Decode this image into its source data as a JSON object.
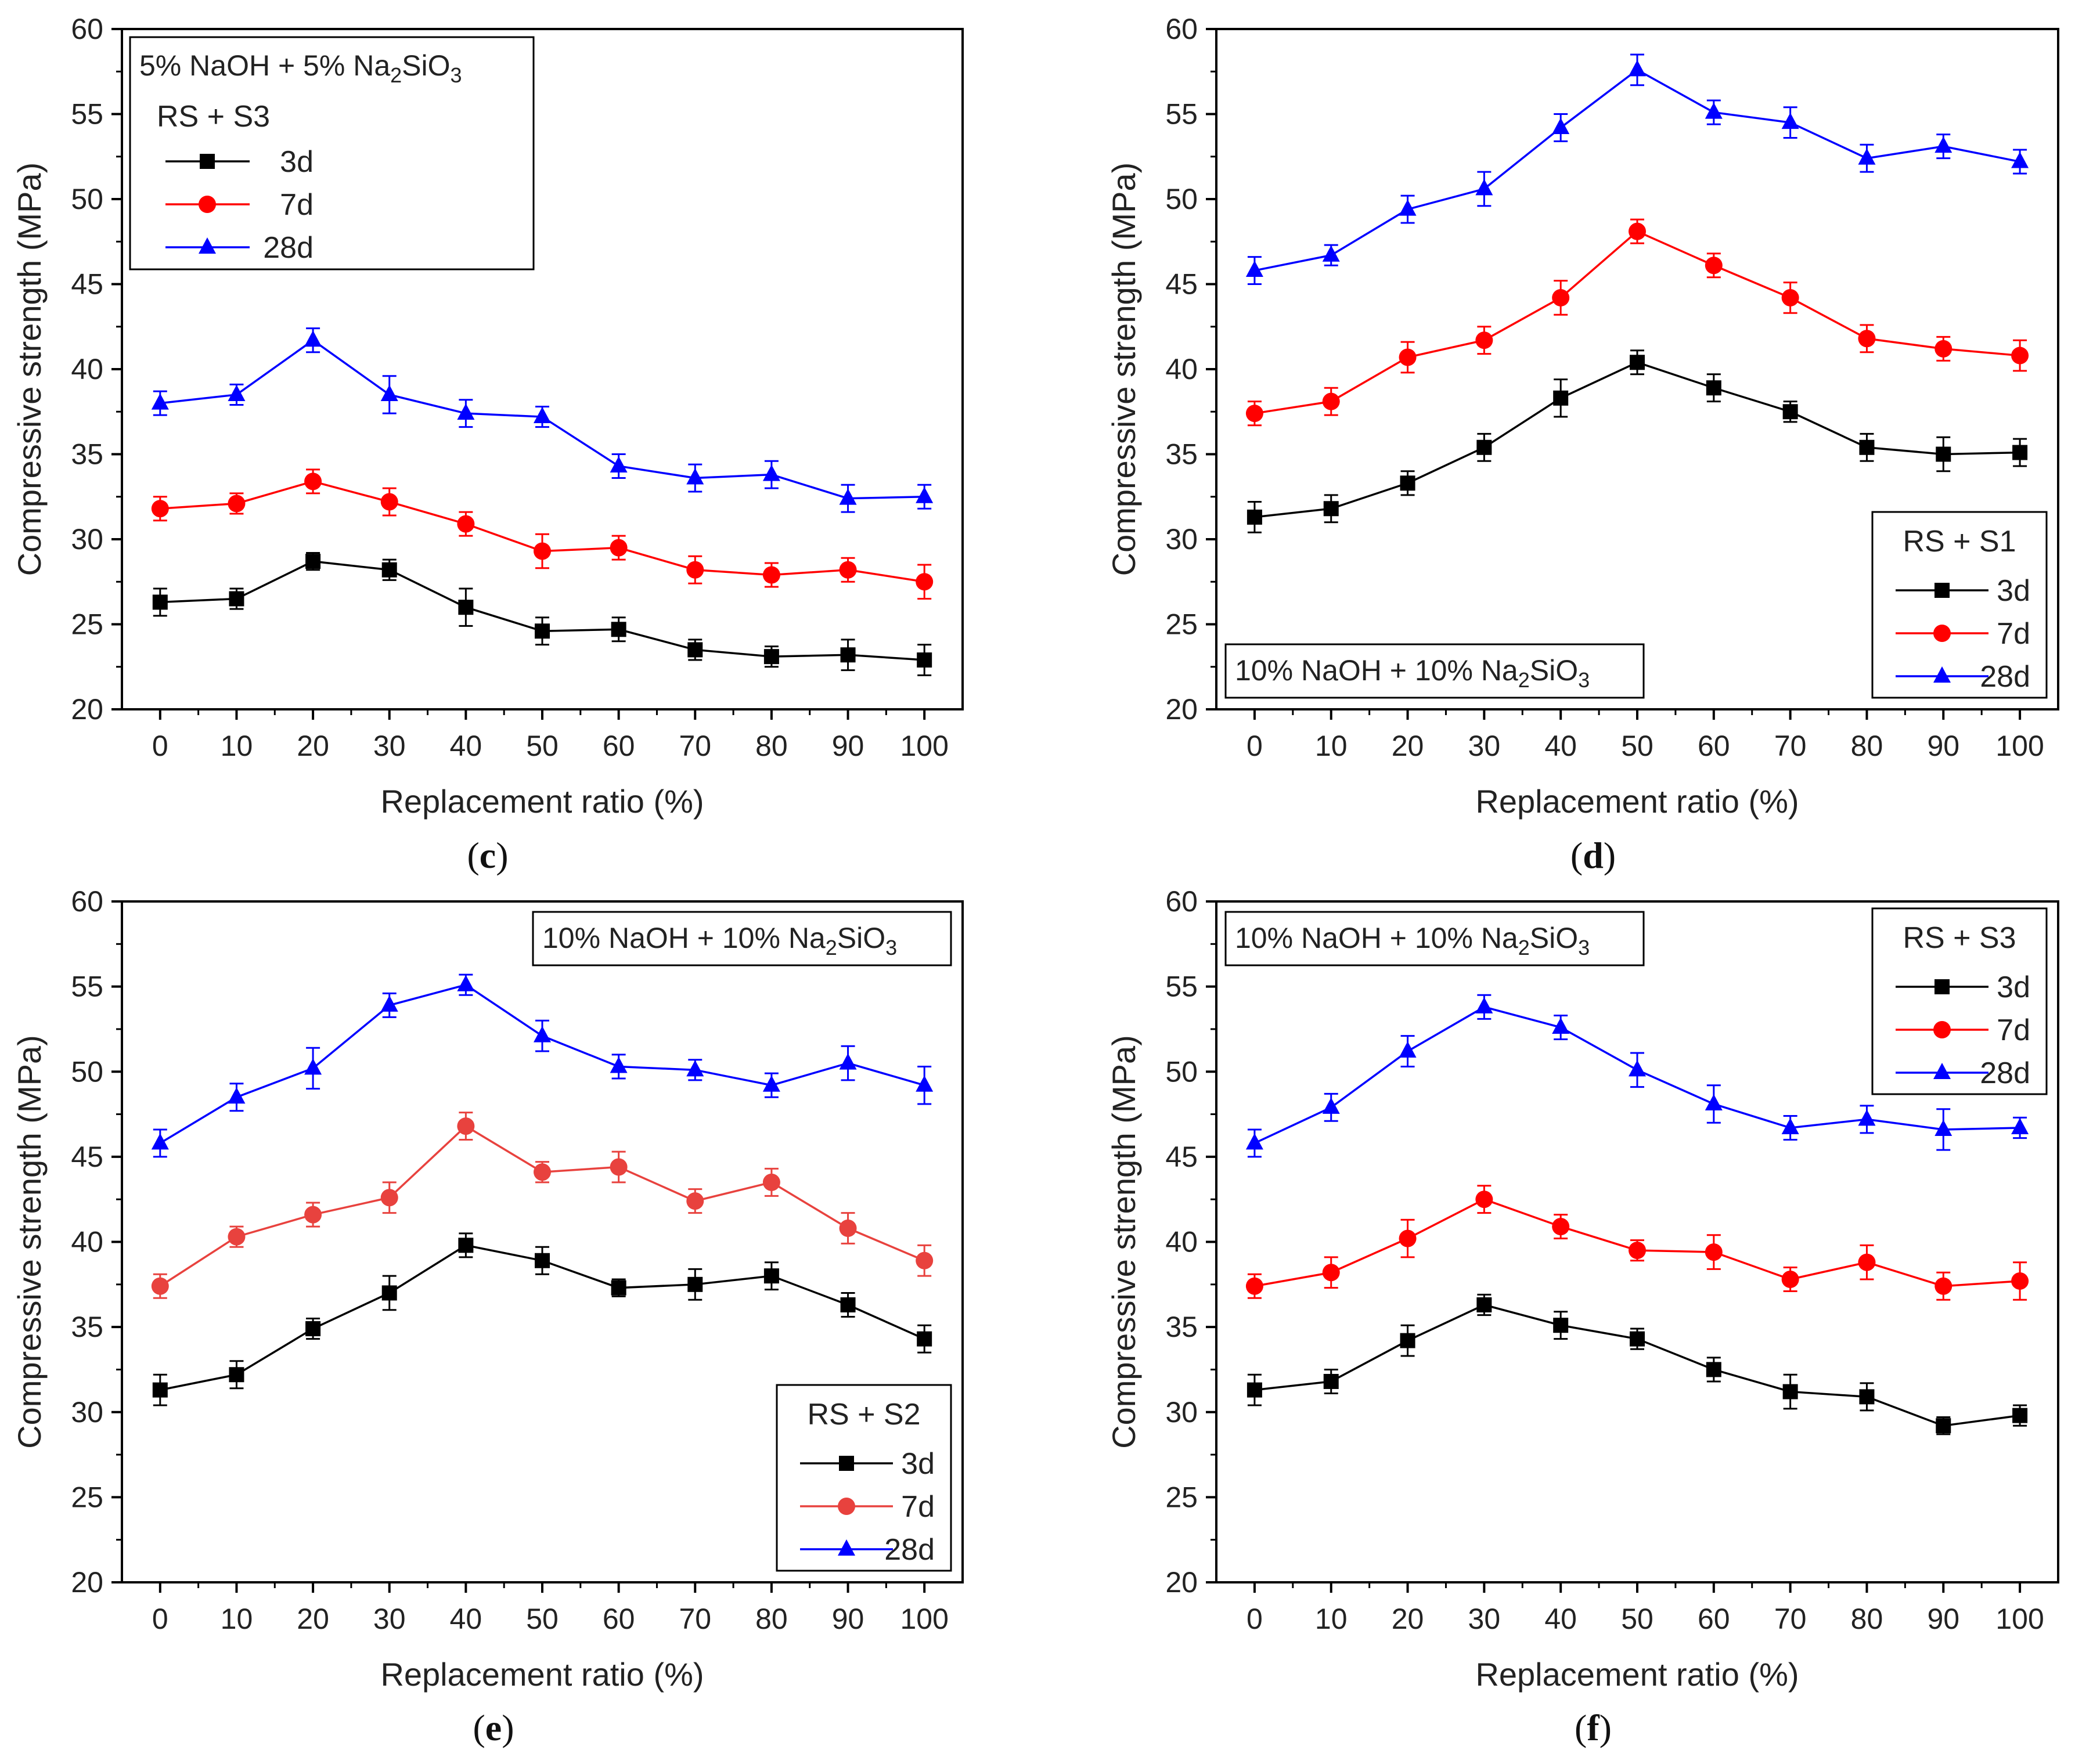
{
  "chart_data": [
    {
      "panel": "c",
      "caption": {
        "open": "(",
        "letter": "c",
        "close": ")"
      },
      "type": "line",
      "xlabel": "Replacement ratio (%)",
      "ylabel": "Compressive strength (MPa)",
      "xlim": [
        -5,
        105
      ],
      "ylim": [
        20,
        60
      ],
      "xticks": [
        "0",
        "10",
        "20",
        "30",
        "40",
        "50",
        "60",
        "70",
        "80",
        "90",
        "100"
      ],
      "yticks": [
        "20",
        "25",
        "30",
        "35",
        "40",
        "45",
        "50",
        "55",
        "60"
      ],
      "x": [
        0,
        10,
        20,
        30,
        40,
        50,
        60,
        70,
        80,
        90,
        100
      ],
      "condition": {
        "main": "5% NaOH + 5% Na",
        "sub": "2",
        "tail": "SiO",
        "sub2": "3"
      },
      "condition_position": "top-left",
      "legend": {
        "title": "RS + S3",
        "position": "top-left"
      },
      "series": [
        {
          "name": "3d",
          "marker": "square",
          "color": "#000000",
          "values": [
            26.3,
            26.5,
            28.7,
            28.2,
            26.0,
            24.6,
            24.7,
            23.5,
            23.1,
            23.2,
            22.9
          ],
          "errors": [
            0.8,
            0.6,
            0.5,
            0.6,
            1.1,
            0.8,
            0.7,
            0.6,
            0.6,
            0.9,
            0.9
          ]
        },
        {
          "name": "7d",
          "marker": "circle",
          "color": "#ff0000",
          "values": [
            31.8,
            32.1,
            33.4,
            32.2,
            30.9,
            29.3,
            29.5,
            28.2,
            27.9,
            28.2,
            27.5
          ],
          "errors": [
            0.7,
            0.6,
            0.7,
            0.8,
            0.7,
            1.0,
            0.7,
            0.8,
            0.7,
            0.7,
            1.0
          ]
        },
        {
          "name": "28d",
          "marker": "triangle",
          "color": "#0000ff",
          "values": [
            38.0,
            38.5,
            41.7,
            38.5,
            37.4,
            37.2,
            34.3,
            33.6,
            33.8,
            32.4,
            32.5
          ],
          "errors": [
            0.7,
            0.6,
            0.7,
            1.1,
            0.8,
            0.6,
            0.7,
            0.8,
            0.8,
            0.8,
            0.7
          ]
        }
      ]
    },
    {
      "panel": "d",
      "caption": {
        "open": "(",
        "letter": "d",
        "close": ")"
      },
      "type": "line",
      "xlabel": "Replacement ratio (%)",
      "ylabel": "Compressive strength (MPa)",
      "xlim": [
        -5,
        105
      ],
      "ylim": [
        20,
        60
      ],
      "xticks": [
        "0",
        "10",
        "20",
        "30",
        "40",
        "50",
        "60",
        "70",
        "80",
        "90",
        "100"
      ],
      "yticks": [
        "20",
        "25",
        "30",
        "35",
        "40",
        "45",
        "50",
        "55",
        "60"
      ],
      "x": [
        0,
        10,
        20,
        30,
        40,
        50,
        60,
        70,
        80,
        90,
        100
      ],
      "condition": {
        "main": "10% NaOH + 10% Na",
        "sub": "2",
        "tail": "SiO",
        "sub2": "3"
      },
      "condition_position": "bottom-left",
      "legend": {
        "title": "RS + S1",
        "position": "bottom-right"
      },
      "series": [
        {
          "name": "3d",
          "marker": "square",
          "color": "#000000",
          "values": [
            31.3,
            31.8,
            33.3,
            35.4,
            38.3,
            40.4,
            38.9,
            37.5,
            35.4,
            35.0,
            35.1
          ],
          "errors": [
            0.9,
            0.8,
            0.7,
            0.8,
            1.1,
            0.7,
            0.8,
            0.6,
            0.8,
            1.0,
            0.8
          ]
        },
        {
          "name": "7d",
          "marker": "circle",
          "color": "#ff0000",
          "values": [
            37.4,
            38.1,
            40.7,
            41.7,
            44.2,
            48.1,
            46.1,
            44.2,
            41.8,
            41.2,
            40.8
          ],
          "errors": [
            0.7,
            0.8,
            0.9,
            0.8,
            1.0,
            0.7,
            0.7,
            0.9,
            0.8,
            0.7,
            0.9
          ]
        },
        {
          "name": "28d",
          "marker": "triangle",
          "color": "#0000ff",
          "values": [
            45.8,
            46.7,
            49.4,
            50.6,
            54.2,
            57.6,
            55.1,
            54.5,
            52.4,
            53.1,
            52.2
          ],
          "errors": [
            0.8,
            0.6,
            0.8,
            1.0,
            0.8,
            0.9,
            0.7,
            0.9,
            0.8,
            0.7,
            0.7
          ]
        }
      ]
    },
    {
      "panel": "e",
      "caption": {
        "open": "(",
        "letter": "e",
        "close": ")"
      },
      "type": "line",
      "xlabel": "Replacement ratio (%)",
      "ylabel": "Compressive strength (MPa)",
      "xlim": [
        -5,
        105
      ],
      "ylim": [
        20,
        60
      ],
      "xticks": [
        "0",
        "10",
        "20",
        "30",
        "40",
        "50",
        "60",
        "70",
        "80",
        "90",
        "100"
      ],
      "yticks": [
        "20",
        "25",
        "30",
        "35",
        "40",
        "45",
        "50",
        "55",
        "60"
      ],
      "x": [
        0,
        10,
        20,
        30,
        40,
        50,
        60,
        70,
        80,
        90,
        100
      ],
      "condition": {
        "main": "10% NaOH + 10% Na",
        "sub": "2",
        "tail": "SiO",
        "sub2": "3"
      },
      "condition_position": "top-right",
      "legend": {
        "title": "RS + S2",
        "position": "bottom-right"
      },
      "series": [
        {
          "name": "3d",
          "marker": "square",
          "color": "#000000",
          "values": [
            31.3,
            32.2,
            34.9,
            37.0,
            39.8,
            38.9,
            37.3,
            37.5,
            38.0,
            36.3,
            34.3
          ],
          "errors": [
            0.9,
            0.8,
            0.6,
            1.0,
            0.7,
            0.8,
            0.5,
            0.9,
            0.8,
            0.7,
            0.8
          ]
        },
        {
          "name": "7d",
          "marker": "circle",
          "color": "#e8423e",
          "values": [
            37.4,
            40.3,
            41.6,
            42.6,
            46.8,
            44.1,
            44.4,
            42.4,
            43.5,
            40.8,
            38.9
          ],
          "errors": [
            0.7,
            0.6,
            0.7,
            0.9,
            0.8,
            0.6,
            0.9,
            0.7,
            0.8,
            0.9,
            0.9
          ]
        },
        {
          "name": "28d",
          "marker": "triangle",
          "color": "#0000ff",
          "values": [
            45.8,
            48.5,
            50.2,
            53.9,
            55.1,
            52.1,
            50.3,
            50.1,
            49.2,
            50.5,
            49.2
          ],
          "errors": [
            0.8,
            0.8,
            1.2,
            0.7,
            0.6,
            0.9,
            0.7,
            0.6,
            0.7,
            1.0,
            1.1
          ]
        }
      ]
    },
    {
      "panel": "f",
      "caption": {
        "open": "(",
        "letter": "f",
        "close": ")"
      },
      "type": "line",
      "xlabel": "Replacement ratio (%)",
      "ylabel": "Compressive strength (MPa)",
      "xlim": [
        -5,
        105
      ],
      "ylim": [
        20,
        60
      ],
      "xticks": [
        "0",
        "10",
        "20",
        "30",
        "40",
        "50",
        "60",
        "70",
        "80",
        "90",
        "100"
      ],
      "yticks": [
        "20",
        "25",
        "30",
        "35",
        "40",
        "45",
        "50",
        "55",
        "60"
      ],
      "x": [
        0,
        10,
        20,
        30,
        40,
        50,
        60,
        70,
        80,
        90,
        100
      ],
      "condition": {
        "main": "10% NaOH + 10% Na",
        "sub": "2",
        "tail": "SiO",
        "sub2": "3"
      },
      "condition_position": "top-left",
      "legend": {
        "title": "RS + S3",
        "position": "top-right"
      },
      "series": [
        {
          "name": "3d",
          "marker": "square",
          "color": "#000000",
          "values": [
            31.3,
            31.8,
            34.2,
            36.3,
            35.1,
            34.3,
            32.5,
            31.2,
            30.9,
            29.2,
            29.8
          ],
          "errors": [
            0.9,
            0.7,
            0.9,
            0.6,
            0.8,
            0.6,
            0.7,
            1.0,
            0.8,
            0.5,
            0.6
          ]
        },
        {
          "name": "7d",
          "marker": "circle",
          "color": "#ff0000",
          "values": [
            37.4,
            38.2,
            40.2,
            42.5,
            40.9,
            39.5,
            39.4,
            37.8,
            38.8,
            37.4,
            37.7
          ],
          "errors": [
            0.7,
            0.9,
            1.1,
            0.8,
            0.7,
            0.6,
            1.0,
            0.7,
            1.0,
            0.8,
            1.1
          ]
        },
        {
          "name": "28d",
          "marker": "triangle",
          "color": "#0000ff",
          "values": [
            45.8,
            47.9,
            51.2,
            53.8,
            52.6,
            50.1,
            48.1,
            46.7,
            47.2,
            46.6,
            46.7
          ],
          "errors": [
            0.8,
            0.8,
            0.9,
            0.7,
            0.7,
            1.0,
            1.1,
            0.7,
            0.8,
            1.2,
            0.6
          ]
        }
      ]
    }
  ]
}
